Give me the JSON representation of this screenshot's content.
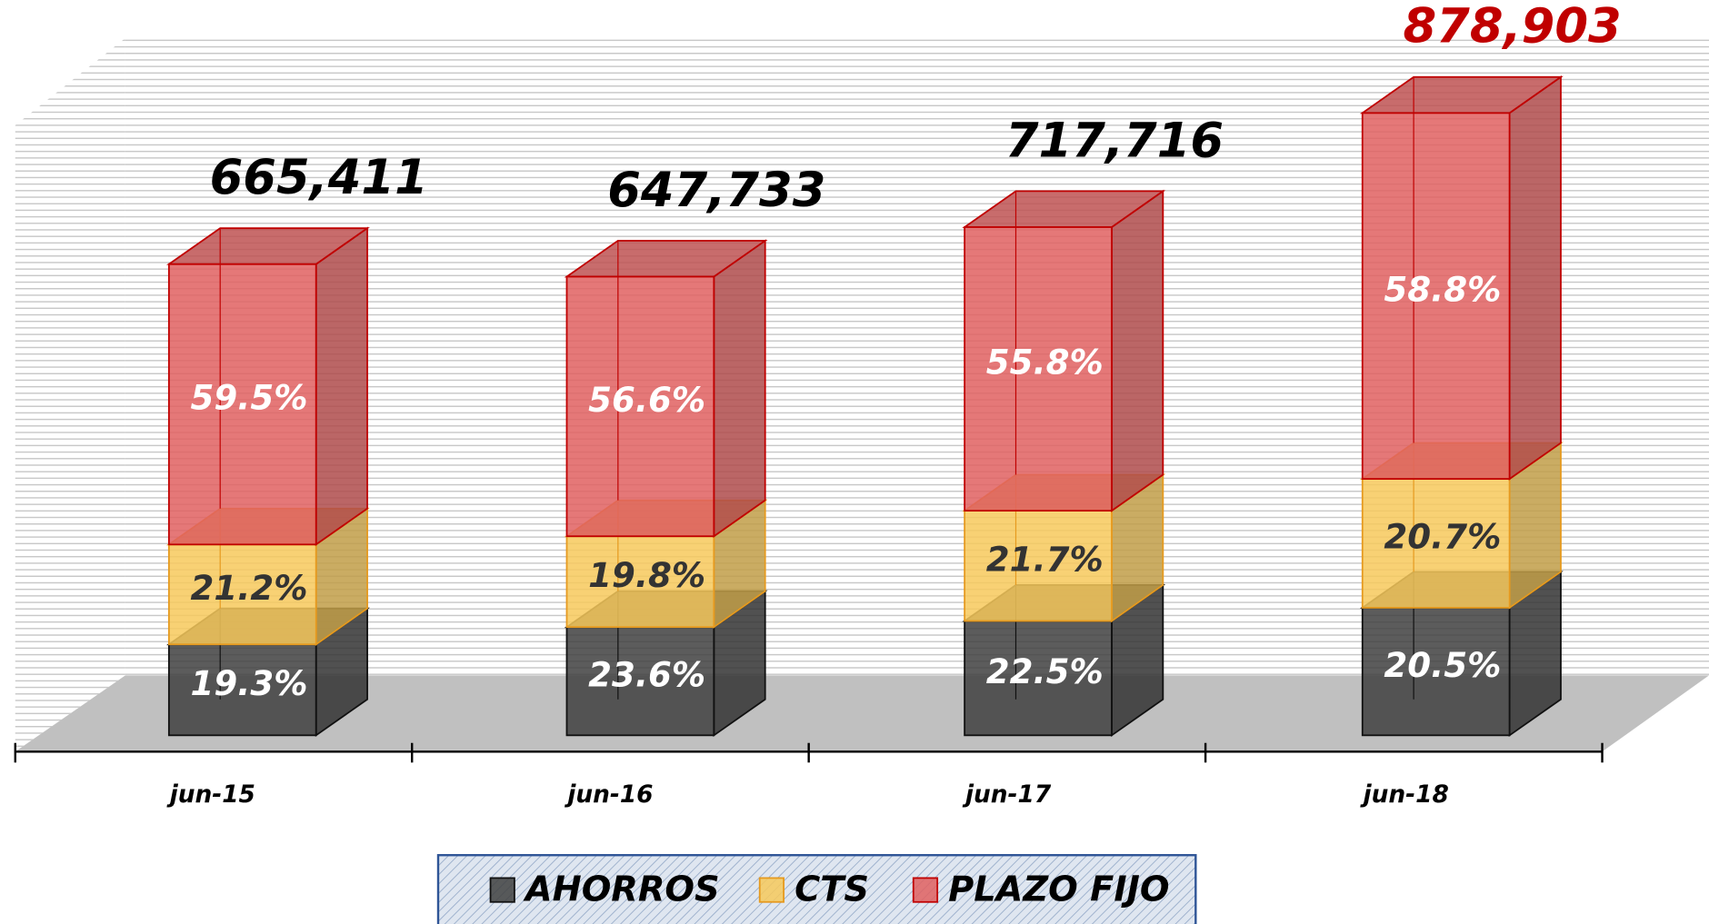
{
  "chart_data": {
    "type": "bar3d_stacked",
    "categories": [
      "jun-15",
      "jun-16",
      "jun-17",
      "jun-18"
    ],
    "series": [
      {
        "name": "AHORROS",
        "color": "#404040",
        "label_color": "#ffffff",
        "values": [
          19.3,
          23.6,
          22.5,
          20.5
        ],
        "value_labels": [
          "19.3%",
          "23.6%",
          "22.5%",
          "20.5%"
        ]
      },
      {
        "name": "CTS",
        "color": "#f7c95c",
        "label_color": "#333333",
        "values": [
          21.2,
          19.8,
          21.7,
          20.7
        ],
        "value_labels": [
          "21.2%",
          "19.8%",
          "21.7%",
          "20.7%"
        ]
      },
      {
        "name": "PLAZO FIJO",
        "color": "#e06060",
        "label_color": "#ffffff",
        "values": [
          59.5,
          56.6,
          55.8,
          58.8
        ],
        "value_labels": [
          "59.5%",
          "56.6%",
          "55.8%",
          "58.8%"
        ]
      }
    ],
    "totals": {
      "values": [
        665411,
        647733,
        717716,
        878903
      ],
      "value_labels": [
        "665,411",
        "647,733",
        "717,716",
        "878,903"
      ],
      "colors": [
        "#000000",
        "#000000",
        "#000000",
        "#c00000"
      ]
    },
    "ylim": [
      0,
      1000000
    ]
  }
}
